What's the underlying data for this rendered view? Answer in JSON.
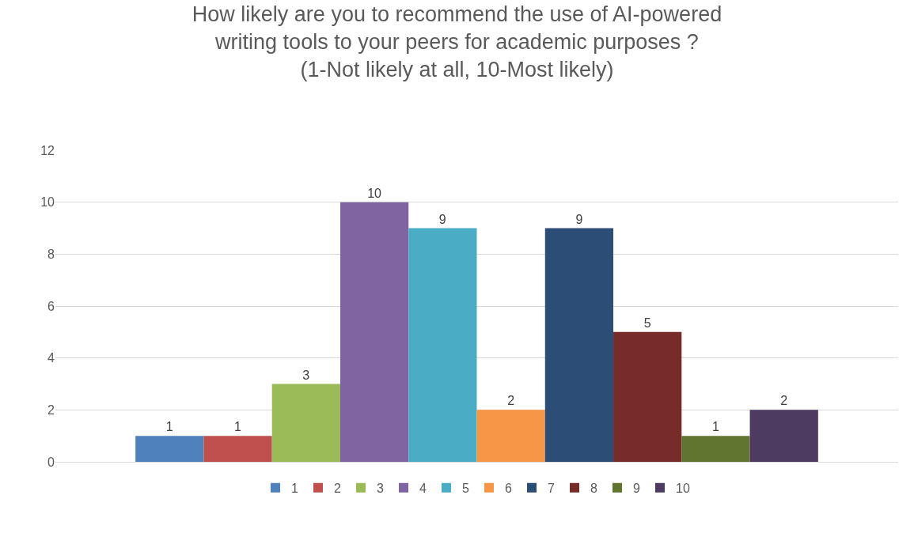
{
  "chart_data": {
    "type": "bar",
    "title": "How likely are you to recommend the use of AI-powered writing tools to your peers for academic purposes ? (1-Not likely at all, 10-Most likely)",
    "categories": [
      null
    ],
    "series": [
      {
        "name": "1",
        "color": "#4f81bd",
        "values": [
          1
        ]
      },
      {
        "name": "2",
        "color": "#c0504d",
        "values": [
          1
        ]
      },
      {
        "name": "3",
        "color": "#9bbb59",
        "values": [
          3
        ]
      },
      {
        "name": "4",
        "color": "#8064a2",
        "values": [
          10
        ]
      },
      {
        "name": "5",
        "color": "#4bacc6",
        "values": [
          9
        ]
      },
      {
        "name": "6",
        "color": "#f79646",
        "values": [
          2
        ]
      },
      {
        "name": "7",
        "color": "#2c4d75",
        "values": [
          9
        ]
      },
      {
        "name": "8",
        "color": "#772c2a",
        "values": [
          5
        ]
      },
      {
        "name": "9",
        "color": "#5f7530",
        "values": [
          1
        ]
      },
      {
        "name": "10",
        "color": "#4d3b62",
        "values": [
          2
        ]
      }
    ],
    "ylim": [
      0,
      12
    ],
    "yticks": [
      0,
      2,
      4,
      6,
      8,
      10,
      12
    ],
    "grid": "y",
    "legend": "bottom",
    "tick_labels": "y",
    "data_labels": true
  }
}
